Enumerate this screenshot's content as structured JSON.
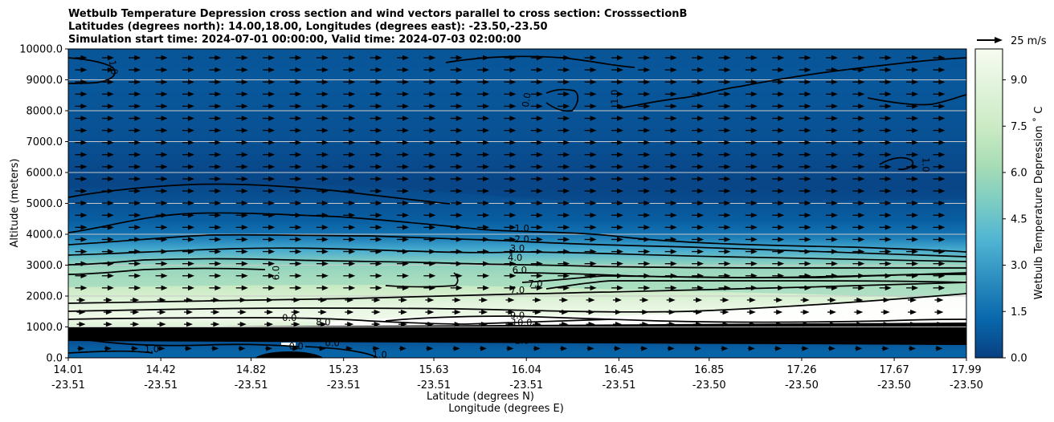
{
  "chart_data": {
    "type": "heatmap",
    "title_lines": [
      "Wetbulb Temperature Depression cross section and wind vectors parallel to cross section: CrosssectionB",
      "Latitudes (degrees north): 14.00,18.00, Longitudes (degrees east): -23.50,-23.50",
      "Simulation start time: 2024-07-01 00:00:00, Valid time: 2024-07-03 02:00:00"
    ],
    "xlabel_lines": [
      "Latitude (degrees N)",
      "Longitude (degrees E)"
    ],
    "ylabel": "Altitude (meters)",
    "ylim": [
      0,
      10000
    ],
    "xlim": [
      14.01,
      17.99
    ],
    "y_ticks": [
      "0.0",
      "1000.0",
      "2000.0",
      "3000.0",
      "4000.0",
      "5000.0",
      "6000.0",
      "7000.0",
      "8000.0",
      "9000.0",
      "10000.0"
    ],
    "x_ticks": [
      {
        "lat": "14.01",
        "lon": "-23.51"
      },
      {
        "lat": "14.42",
        "lon": "-23.51"
      },
      {
        "lat": "14.82",
        "lon": "-23.51"
      },
      {
        "lat": "15.23",
        "lon": "-23.51"
      },
      {
        "lat": "15.63",
        "lon": "-23.51"
      },
      {
        "lat": "16.04",
        "lon": "-23.51"
      },
      {
        "lat": "16.45",
        "lon": "-23.51"
      },
      {
        "lat": "16.85",
        "lon": "-23.50"
      },
      {
        "lat": "17.26",
        "lon": "-23.50"
      },
      {
        "lat": "17.67",
        "lon": "-23.50"
      },
      {
        "lat": "17.99",
        "lon": "-23.50"
      }
    ],
    "colorbar": {
      "label": "Wetbulb Temperature Depression $^\\circ$C",
      "display_label": "Wetbulb Temperature Depression ˚ C",
      "range": [
        0,
        10
      ],
      "ticks": [
        "0.0",
        "1.5",
        "3.0",
        "4.5",
        "6.0",
        "7.5",
        "9.0"
      ],
      "colors": [
        "#084081",
        "#0868ac",
        "#2b8cbe",
        "#4eb3d3",
        "#7bccc4",
        "#a8ddb5",
        "#ccebc5",
        "#e0f3db",
        "#f7fcf0"
      ]
    },
    "wind_key": {
      "label": "25 m/s"
    },
    "profile": {
      "altitude_m": [
        0,
        300,
        600,
        800,
        1000,
        1300,
        1700,
        2200,
        2600,
        3000,
        3500,
        4000,
        4500,
        5000,
        5500,
        6000,
        7000,
        8000,
        9000,
        10000
      ],
      "depression_c": [
        1.2,
        1.0,
        0.4,
        0.3,
        8.5,
        9.6,
        9.0,
        7.6,
        7.0,
        5.6,
        3.5,
        1.6,
        0.9,
        0.6,
        0.3,
        0.4,
        0.8,
        1.0,
        1.2,
        1.0
      ]
    },
    "contour_labels": [
      {
        "text": "0.0",
        "lat": 15.02,
        "alt": 380
      },
      {
        "text": "0.0",
        "lat": 15.18,
        "alt": 480
      },
      {
        "text": "1.0",
        "lat": 15.39,
        "alt": 100
      },
      {
        "text": "1.0",
        "lat": 14.38,
        "alt": 280
      },
      {
        "text": "0.0",
        "lat": 14.99,
        "alt": 1300
      },
      {
        "text": "8.0",
        "lat": 15.14,
        "alt": 1150
      },
      {
        "text": "9.0",
        "lat": 16.0,
        "alt": 1380
      },
      {
        "text": "10.0",
        "lat": 16.02,
        "alt": 1140
      },
      {
        "text": "1.0",
        "lat": 16.02,
        "alt": 560
      },
      {
        "text": "7.0",
        "lat": 16.0,
        "alt": 2200
      },
      {
        "text": "7.0",
        "lat": 16.08,
        "alt": 2400
      },
      {
        "text": "6.0",
        "lat": 16.01,
        "alt": 2850
      },
      {
        "text": "4.0",
        "lat": 15.99,
        "alt": 3250
      },
      {
        "text": "3.0",
        "lat": 16.0,
        "alt": 3550
      },
      {
        "text": "2.0",
        "lat": 16.02,
        "alt": 3850
      },
      {
        "text": "1.0",
        "lat": 16.02,
        "alt": 4200
      },
      {
        "text": "6.0",
        "lat": 14.93,
        "alt": 2750
      },
      {
        "text": "1.0",
        "lat": 14.21,
        "alt": 9400
      },
      {
        "text": "0.0",
        "lat": 16.04,
        "alt": 8350
      },
      {
        "text": "1.0",
        "lat": 16.43,
        "alt": 8450
      },
      {
        "text": "1.0",
        "lat": 17.81,
        "alt": 6250
      }
    ]
  }
}
